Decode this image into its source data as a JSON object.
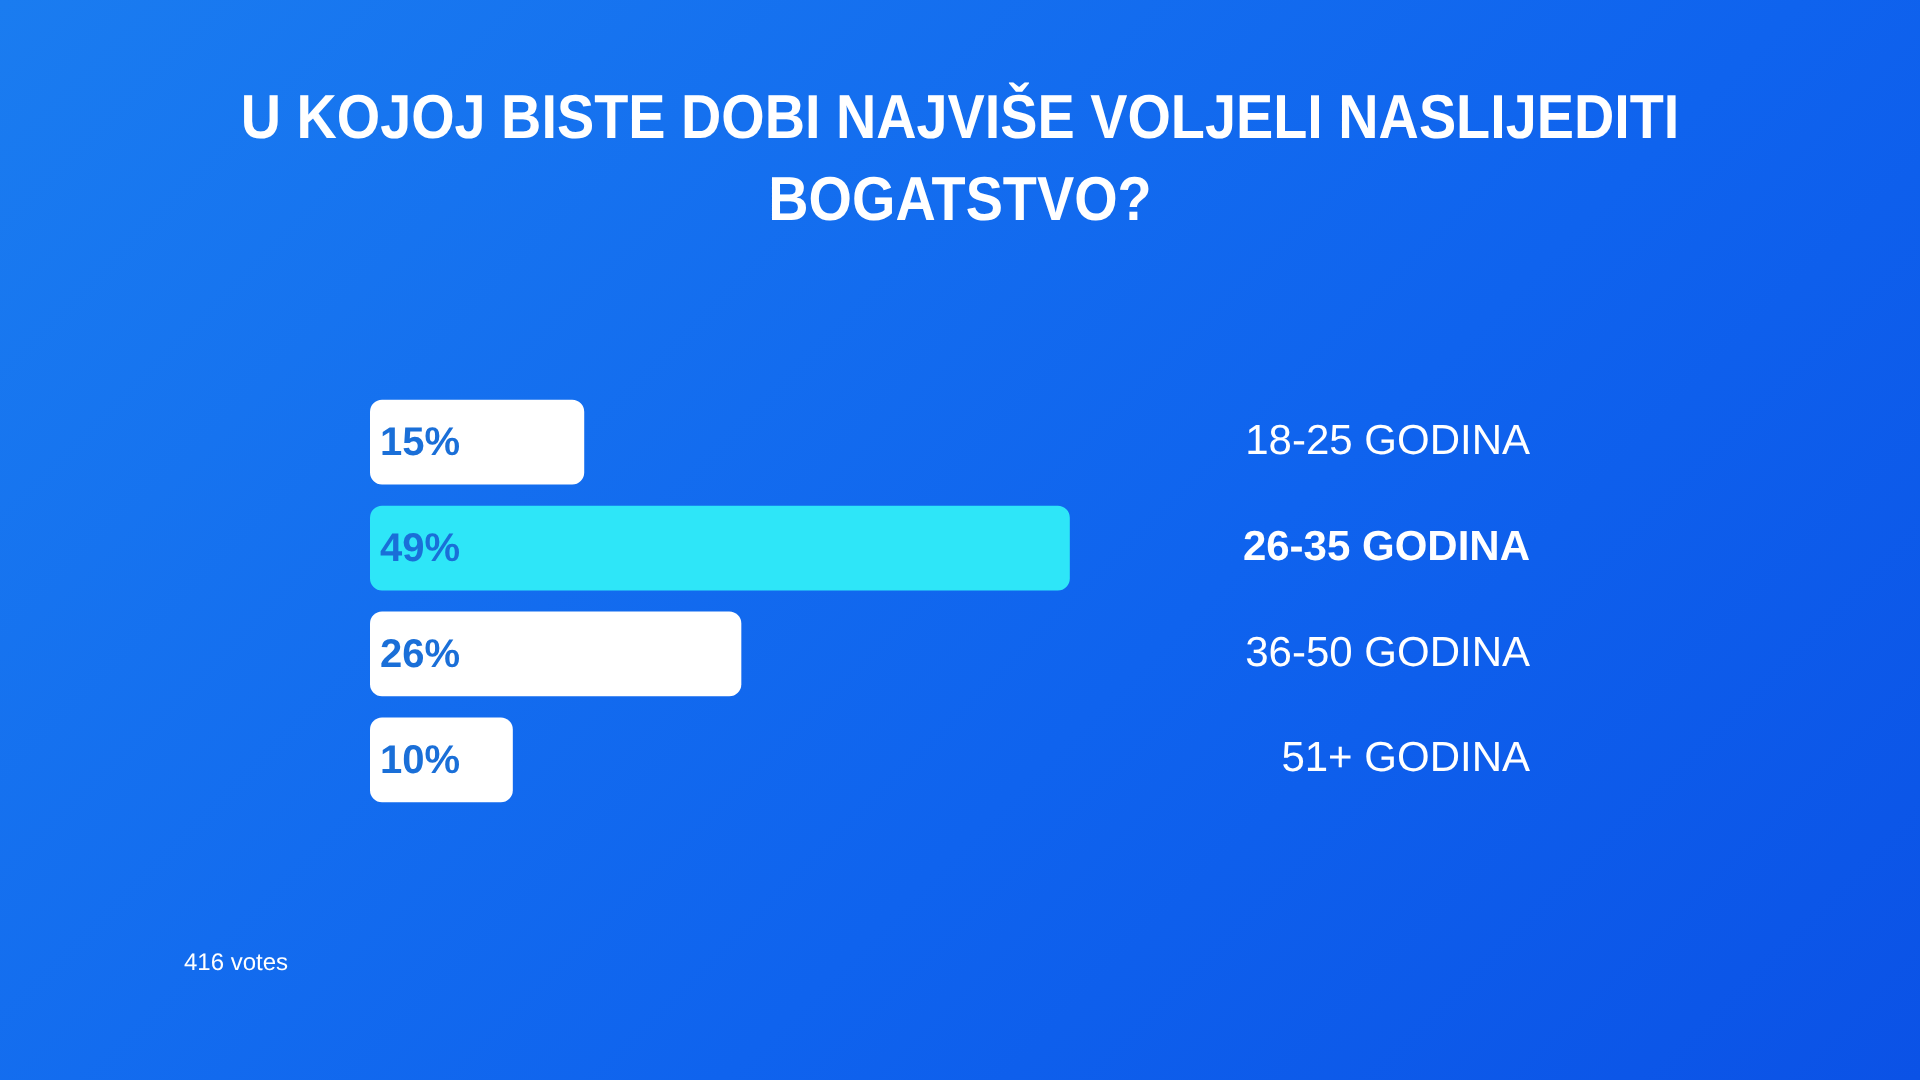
{
  "chart_data": {
    "type": "bar",
    "orientation": "horizontal",
    "title": "U KOJOJ BISTE DOBI NAJVIŠE VOLJELI NASLIJEDITI BOGATSTVO?",
    "categories": [
      "18-25 GODINA",
      "26-35 GODINA",
      "36-50 GODINA",
      "51+ GODINA"
    ],
    "values": [
      15,
      49,
      26,
      10
    ],
    "colors": [
      "#ffffff",
      "#2ee6f8",
      "#ffffff",
      "#ffffff"
    ],
    "value_labels": [
      "15%",
      "49%",
      "26%",
      "10%"
    ],
    "legend": false,
    "annotations": [
      "416 votes"
    ]
  }
}
